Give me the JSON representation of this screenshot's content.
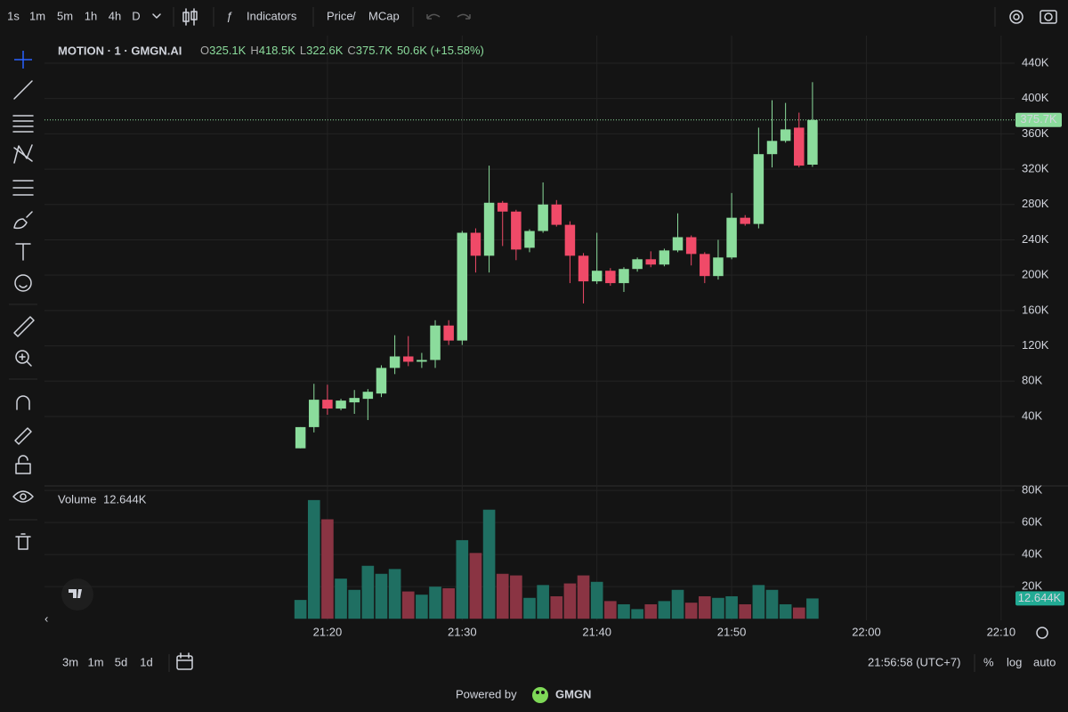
{
  "toolbar": {
    "intervals": [
      "1s",
      "1m",
      "5m",
      "1h",
      "4h",
      "D"
    ],
    "active_interval": 1,
    "indicators": "Indicators",
    "price": "Price",
    "separator": "/",
    "mcap": "MCap"
  },
  "chart_data": {
    "type": "candlestick",
    "title": "MOTION · 1 · GMGN.AI",
    "legend": {
      "open_key": "O",
      "open": "325.1K",
      "high_key": "H",
      "high": "418.5K",
      "low_key": "L",
      "low": "322.6K",
      "close_key": "C",
      "close": "375.7K",
      "change": "50.6K (+15.58%)"
    },
    "x": [
      "21:18",
      "21:19",
      "21:20",
      "21:21",
      "21:22",
      "21:23",
      "21:24",
      "21:25",
      "21:26",
      "21:27",
      "21:28",
      "21:29",
      "21:30",
      "21:31",
      "21:32",
      "21:33",
      "21:34",
      "21:35",
      "21:36",
      "21:37",
      "21:38",
      "21:39",
      "21:40",
      "21:41",
      "21:42",
      "21:43",
      "21:44",
      "21:45",
      "21:46",
      "21:47",
      "21:48",
      "21:49",
      "21:50",
      "21:51",
      "21:52",
      "21:53",
      "21:54",
      "21:55",
      "21:56"
    ],
    "open": [
      4000,
      28000,
      59000,
      49000,
      56000,
      60000,
      66000,
      95000,
      108000,
      102000,
      104000,
      143000,
      126000,
      248000,
      222000,
      282000,
      272000,
      231000,
      250000,
      280000,
      257000,
      222000,
      193000,
      205000,
      191000,
      207000,
      218000,
      212000,
      228000,
      243000,
      224000,
      199000,
      220000,
      265000,
      258000,
      337000,
      352000,
      367000,
      325100
    ],
    "high": [
      28000,
      77000,
      76000,
      60000,
      70000,
      71000,
      98000,
      132000,
      131000,
      112000,
      149000,
      149000,
      250000,
      253000,
      324000,
      284000,
      274000,
      252000,
      305000,
      285000,
      261000,
      225000,
      248000,
      208000,
      209000,
      220000,
      227000,
      230000,
      270000,
      245000,
      226000,
      240000,
      293000,
      268000,
      367000,
      398000,
      395000,
      384000,
      418500
    ],
    "low": [
      4000,
      22000,
      42000,
      47000,
      43000,
      36000,
      62000,
      88000,
      97000,
      95000,
      95000,
      121000,
      121000,
      203000,
      203000,
      233000,
      217000,
      226000,
      248000,
      255000,
      191000,
      168000,
      190000,
      188000,
      181000,
      204000,
      209000,
      210000,
      226000,
      211000,
      191000,
      195000,
      218000,
      256000,
      253000,
      322000,
      350000,
      322000,
      322600
    ],
    "close": [
      28000,
      59000,
      49000,
      58000,
      61000,
      68000,
      95000,
      108000,
      102000,
      104000,
      143000,
      126000,
      248000,
      222000,
      282000,
      272000,
      229000,
      250000,
      280000,
      257000,
      222000,
      193000,
      205000,
      191000,
      207000,
      218000,
      212000,
      228000,
      243000,
      224000,
      199000,
      220000,
      265000,
      258000,
      337000,
      352000,
      365000,
      324000,
      375700
    ],
    "up_color": "#8bdc9c",
    "down_color": "#f04a68",
    "ylim": [
      -37600,
      471200
    ],
    "yticks": [
      {
        "value": 440000,
        "label": "440K"
      },
      {
        "value": 400000,
        "label": "400K"
      },
      {
        "value": 360000,
        "label": "360K"
      },
      {
        "value": 320000,
        "label": "320K"
      },
      {
        "value": 280000,
        "label": "280K"
      },
      {
        "value": 240000,
        "label": "240K"
      },
      {
        "value": 200000,
        "label": "200K"
      },
      {
        "value": 160000,
        "label": "160K"
      },
      {
        "value": 120000,
        "label": "120K"
      },
      {
        "value": 80000,
        "label": "80K"
      },
      {
        "value": 40000,
        "label": "40K"
      }
    ],
    "xlim": [
      "20:59",
      "22:11"
    ],
    "xticks": [
      "21:20",
      "21:30",
      "21:40",
      "21:50",
      "22:00",
      "22:10"
    ],
    "grid": true,
    "price_marker": {
      "value": 375700,
      "label": "375.7K"
    },
    "volume": {
      "title": "Volume",
      "last": {
        "value": 12644,
        "label": "12.644K"
      },
      "values": [
        11700,
        74000,
        62000,
        25000,
        18000,
        33000,
        28000,
        31000,
        17000,
        15000,
        20000,
        19000,
        49000,
        41000,
        68000,
        28000,
        27000,
        13000,
        21000,
        14000,
        22000,
        27000,
        23000,
        11000,
        9000,
        6000,
        9000,
        11000,
        18000,
        10000,
        14000,
        13000,
        14000,
        9000,
        21000,
        18000,
        9000,
        7000,
        12644
      ],
      "up_color": "#1f6f62",
      "down_color": "#8a3443",
      "marker_color": "#22ab94",
      "ylim": [
        -1000,
        81700
      ],
      "yticks": [
        {
          "value": 80000,
          "label": "80K"
        },
        {
          "value": 60000,
          "label": "60K"
        },
        {
          "value": 40000,
          "label": "40K"
        },
        {
          "value": 20000,
          "label": "20K"
        }
      ]
    }
  },
  "bottom_bar": {
    "ranges": [
      "3m",
      "1m",
      "5d",
      "1d"
    ],
    "clock": "21:56:58 (UTC+7)",
    "percent": "%",
    "log": "log",
    "auto": "auto"
  },
  "footer": {
    "powered_by": "Powered by",
    "brand": "GMGN"
  }
}
